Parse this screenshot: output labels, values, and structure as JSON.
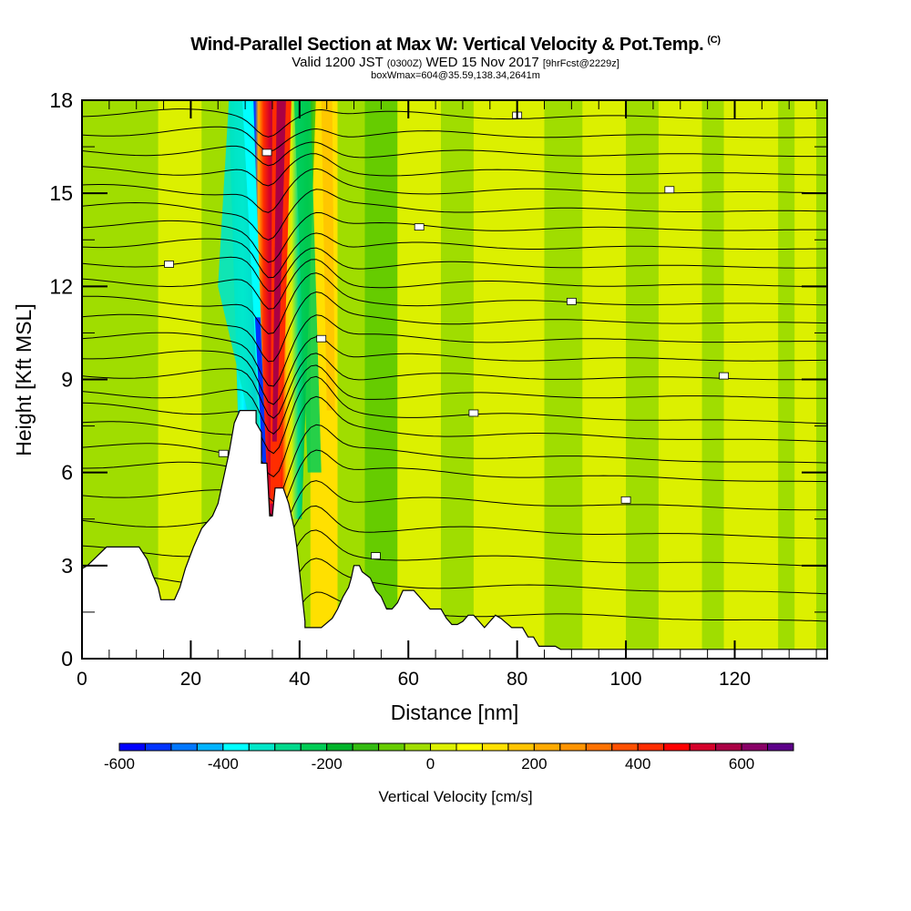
{
  "chart_data": {
    "type": "heatmap",
    "title": "Wind-Parallel Section at Max W: Vertical Velocity & Pot.Temp.",
    "title_mark": "(C)",
    "subtitle_parts": {
      "valid": "Valid 1200 JST",
      "utc": "(0300Z)",
      "date": "WED 15 Nov 2017",
      "forecast": "[9hrFcst@2229z]"
    },
    "subtitle2": "boxWmax=604@35.59,138.34,2641m",
    "xlabel": "Distance [nm]",
    "ylabel": "Height [Kft MSL]",
    "xlim": [
      0,
      137
    ],
    "ylim": [
      0,
      18
    ],
    "xticks": [
      0,
      20,
      40,
      60,
      80,
      100,
      120
    ],
    "yticks": [
      0,
      3,
      6,
      9,
      12,
      15,
      18
    ],
    "x_minor_step": 5,
    "y_minor_step": 1.5,
    "colorbar": {
      "label": "Vertical Velocity [cm/s]",
      "min": -600,
      "max": 700,
      "step": 50,
      "ticks": [
        -600,
        -400,
        -200,
        0,
        200,
        400,
        600
      ],
      "colors": [
        "#0000ff",
        "#0033ff",
        "#0077ff",
        "#00b3ff",
        "#00ffff",
        "#00e6c8",
        "#00d98c",
        "#00cc55",
        "#00b32a",
        "#33bb11",
        "#66cc00",
        "#a0dd00",
        "#dcf000",
        "#ffff00",
        "#ffe000",
        "#ffc400",
        "#ffaa00",
        "#ff9400",
        "#ff7200",
        "#ff5000",
        "#ff2d00",
        "#ff0000",
        "#d4002a",
        "#aa0044",
        "#880066",
        "#5c0088"
      ]
    },
    "terrain_kft": [
      [
        0,
        2.9
      ],
      [
        1,
        3.0
      ],
      [
        4.5,
        3.6
      ],
      [
        10.5,
        3.6
      ],
      [
        12,
        3.2
      ],
      [
        13,
        2.7
      ],
      [
        14,
        2.3
      ],
      [
        14.5,
        1.9
      ],
      [
        17,
        1.9
      ],
      [
        18,
        2.3
      ],
      [
        19,
        2.9
      ],
      [
        20.5,
        3.6
      ],
      [
        22,
        4.2
      ],
      [
        24,
        4.6
      ],
      [
        25,
        5.0
      ],
      [
        26,
        5.8
      ],
      [
        27,
        6.6
      ],
      [
        28,
        7.6
      ],
      [
        29,
        8.0
      ],
      [
        32,
        8.0
      ],
      [
        32,
        7.6
      ],
      [
        33,
        7.3
      ],
      [
        33,
        6.3
      ],
      [
        34,
        6.3
      ],
      [
        34.5,
        4.6
      ],
      [
        35,
        4.6
      ],
      [
        35.5,
        5.5
      ],
      [
        37,
        5.5
      ],
      [
        38,
        5.0
      ],
      [
        39,
        4.2
      ],
      [
        39.5,
        3.6
      ],
      [
        40,
        2.8
      ],
      [
        40.5,
        2.0
      ],
      [
        41,
        1.2
      ],
      [
        41,
        1.0
      ],
      [
        44,
        1.0
      ],
      [
        46,
        1.3
      ],
      [
        47,
        1.6
      ],
      [
        48,
        2.0
      ],
      [
        49,
        2.3
      ],
      [
        49.5,
        2.6
      ],
      [
        50,
        3.0
      ],
      [
        51,
        3.0
      ],
      [
        51.5,
        2.8
      ],
      [
        53,
        2.6
      ],
      [
        54,
        2.2
      ],
      [
        55,
        2.0
      ],
      [
        56,
        1.6
      ],
      [
        57,
        1.6
      ],
      [
        58,
        1.8
      ],
      [
        59,
        2.2
      ],
      [
        61,
        2.2
      ],
      [
        62,
        2.0
      ],
      [
        63,
        1.8
      ],
      [
        64,
        1.6
      ],
      [
        66,
        1.6
      ],
      [
        67,
        1.3
      ],
      [
        68,
        1.1
      ],
      [
        69,
        1.1
      ],
      [
        70,
        1.2
      ],
      [
        71,
        1.4
      ],
      [
        72,
        1.4
      ],
      [
        73,
        1.2
      ],
      [
        74,
        1.0
      ],
      [
        75,
        1.2
      ],
      [
        76,
        1.4
      ],
      [
        77,
        1.3
      ],
      [
        79,
        1.0
      ],
      [
        81,
        1.0
      ],
      [
        82,
        0.7
      ],
      [
        83,
        0.7
      ],
      [
        84,
        0.4
      ],
      [
        86,
        0.4
      ],
      [
        87,
        0.4
      ],
      [
        88,
        0.3
      ],
      [
        90,
        0.3
      ],
      [
        90,
        0.3
      ],
      [
        137,
        0.3
      ]
    ],
    "theta_contour_heights_kft": [
      1.5,
      2.4,
      3.3,
      4.2,
      5.1,
      6.0,
      6.6,
      7.3,
      7.9,
      8.5,
      9.1,
      9.7,
      10.3,
      10.9,
      11.5,
      12.1,
      12.7,
      13.3,
      13.9,
      14.5,
      15.1,
      15.7,
      16.3,
      16.9,
      17.5
    ],
    "max_w_location_nm": 36.5,
    "downdraft_location_nm": 32.5,
    "background_bands": [
      {
        "x": [
          0,
          14
        ],
        "w": -25
      },
      {
        "x": [
          14,
          22
        ],
        "w": 20
      },
      {
        "x": [
          22,
          27
        ],
        "w": -20
      },
      {
        "x": [
          42,
          47
        ],
        "w": 100
      },
      {
        "x": [
          47,
          52
        ],
        "w": -30
      },
      {
        "x": [
          52,
          58
        ],
        "w": -80
      },
      {
        "x": [
          58,
          66
        ],
        "w": 25
      },
      {
        "x": [
          66,
          72
        ],
        "w": -30
      },
      {
        "x": [
          72,
          85
        ],
        "w": 25
      },
      {
        "x": [
          85,
          92
        ],
        "w": -30
      },
      {
        "x": [
          92,
          100
        ],
        "w": 25
      },
      {
        "x": [
          100,
          106
        ],
        "w": -30
      },
      {
        "x": [
          106,
          114
        ],
        "w": 25
      },
      {
        "x": [
          114,
          118
        ],
        "w": -30
      },
      {
        "x": [
          118,
          128
        ],
        "w": 25
      },
      {
        "x": [
          128,
          131
        ],
        "w": -30
      },
      {
        "x": [
          131,
          135
        ],
        "w": 25
      },
      {
        "x": [
          135,
          137
        ],
        "w": -30
      }
    ]
  }
}
